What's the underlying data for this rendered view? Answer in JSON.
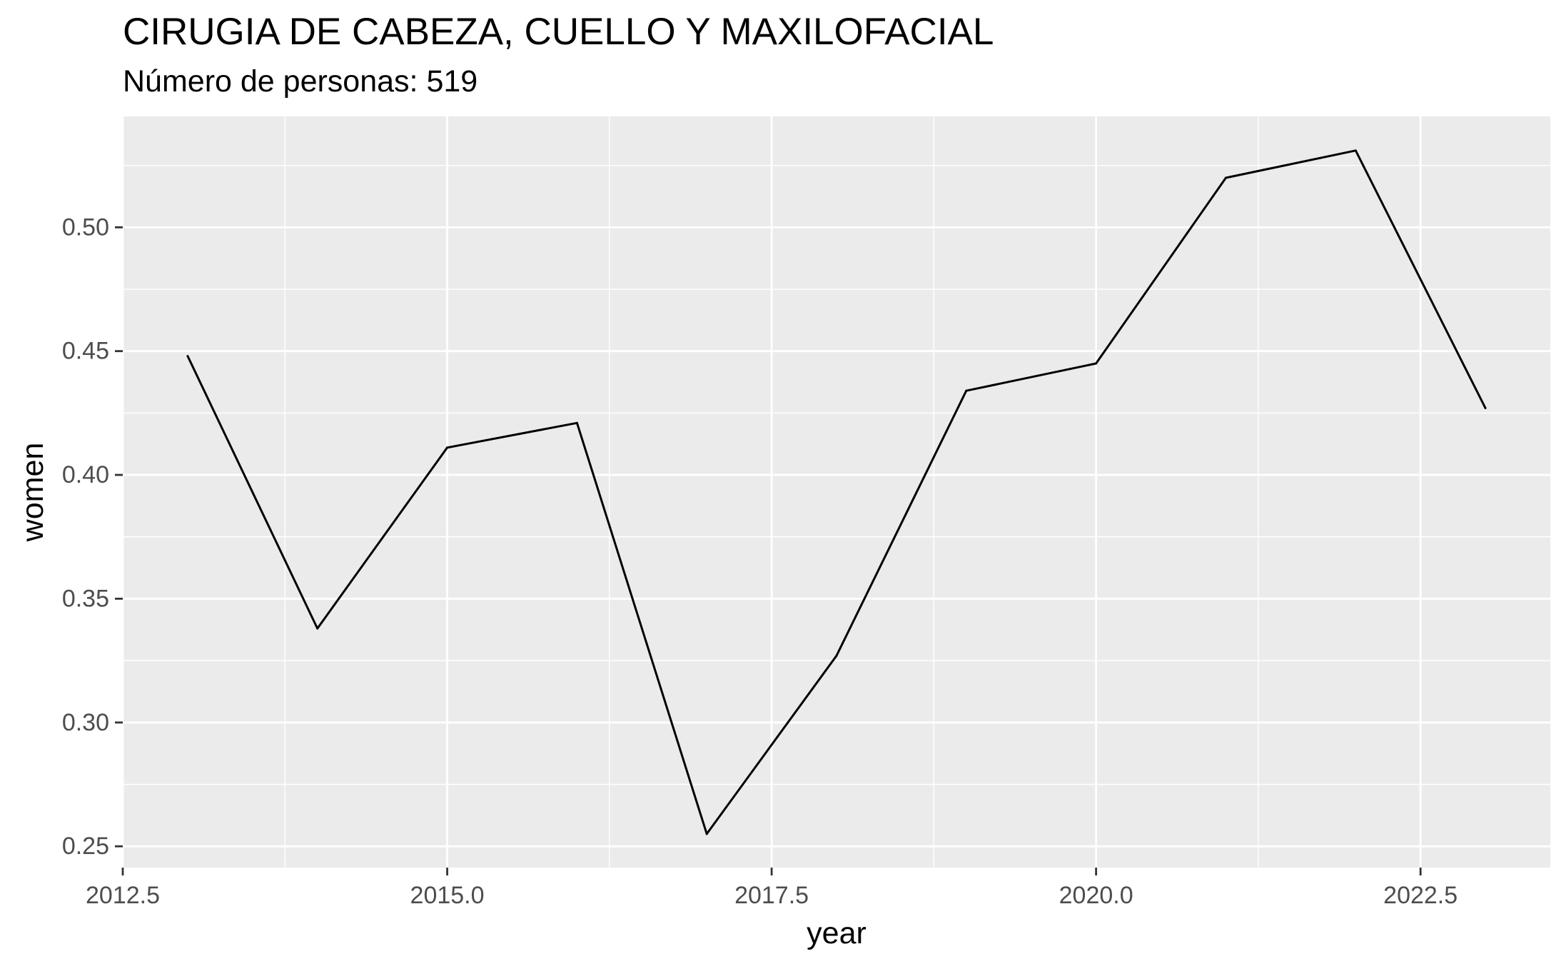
{
  "chart_data": {
    "type": "line",
    "title": "CIRUGIA DE CABEZA, CUELLO Y MAXILOFACIAL",
    "subtitle": "Número de personas: 519",
    "xlabel": "year",
    "ylabel": "women",
    "x": [
      2013,
      2014,
      2015,
      2016,
      2017,
      2018,
      2019,
      2020,
      2021,
      2022,
      2023
    ],
    "series": [
      {
        "values": [
          0.448,
          0.338,
          0.411,
          0.421,
          0.255,
          0.327,
          0.434,
          0.445,
          0.52,
          0.531,
          0.427
        ]
      }
    ],
    "xlim": [
      2012.5,
      2023.5
    ],
    "ylim": [
      0.2414,
      0.5448
    ],
    "x_ticks": [
      2012.5,
      2015.0,
      2017.5,
      2020.0,
      2022.5
    ],
    "x_tick_labels": [
      "2012.5",
      "2015.0",
      "2017.5",
      "2020.0",
      "2022.5"
    ],
    "y_ticks": [
      0.25,
      0.3,
      0.35,
      0.4,
      0.45,
      0.5
    ],
    "y_tick_labels": [
      "0.25",
      "0.30",
      "0.35",
      "0.40",
      "0.45",
      "0.50"
    ],
    "grid": true,
    "legend": "none",
    "colors": {
      "panel_background": "#EBEBEB",
      "grid": "#FFFFFF",
      "line": "#000000",
      "tick_text": "#4D4D4D",
      "tick_mark": "#333333",
      "axis_title": "#000000"
    }
  }
}
